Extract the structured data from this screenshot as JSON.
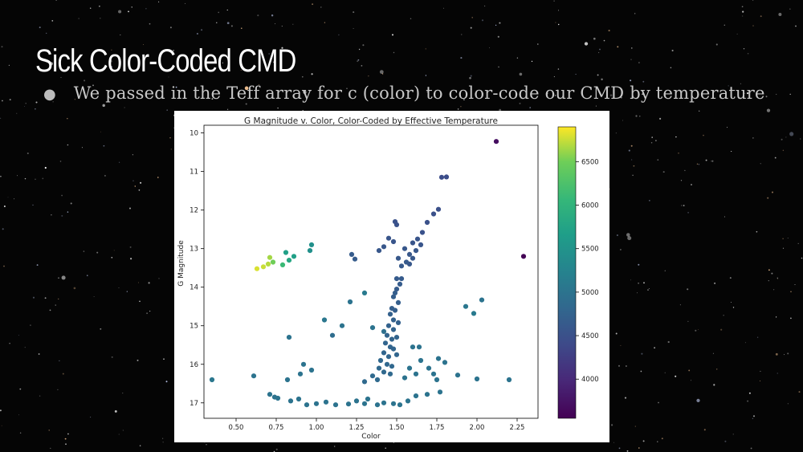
{
  "slide": {
    "title": "Sick Color-Coded CMD",
    "bullet": "We passed in the Teff array for c (color) to color-code our CMD by temperature"
  },
  "chart_data": {
    "type": "scatter",
    "title": "G Magnitude v. Color, Color-Coded by Effective Temperature",
    "xlabel": "Color",
    "ylabel": "G Magnitude",
    "xlim": [
      0.3,
      2.38
    ],
    "ylim": [
      17.4,
      9.8
    ],
    "y_inverted": true,
    "xticks": [
      "0.50",
      "0.75",
      "1.00",
      "1.25",
      "1.50",
      "1.75",
      "2.00",
      "2.25"
    ],
    "yticks": [
      "10",
      "11",
      "12",
      "13",
      "14",
      "15",
      "16",
      "17"
    ],
    "colorbar": {
      "label": "",
      "range": [
        3550,
        6900
      ],
      "ticks": [
        "4000",
        "4500",
        "5000",
        "5500",
        "6000",
        "6500"
      ],
      "colormap": "viridis"
    },
    "grid": false,
    "points": [
      [
        2.12,
        10.22,
        3700
      ],
      [
        2.29,
        13.2,
        3560
      ],
      [
        1.78,
        11.15,
        4450
      ],
      [
        1.81,
        11.14,
        4450
      ],
      [
        1.76,
        11.98,
        4480
      ],
      [
        1.73,
        12.1,
        4500
      ],
      [
        1.69,
        12.32,
        4500
      ],
      [
        1.66,
        12.58,
        4520
      ],
      [
        1.49,
        12.3,
        4520
      ],
      [
        1.5,
        12.38,
        4520
      ],
      [
        1.63,
        12.75,
        4550
      ],
      [
        1.45,
        12.73,
        4550
      ],
      [
        1.48,
        12.82,
        4560
      ],
      [
        1.6,
        12.85,
        4560
      ],
      [
        1.65,
        12.9,
        4560
      ],
      [
        1.42,
        12.95,
        4580
      ],
      [
        1.55,
        13.0,
        4580
      ],
      [
        1.62,
        13.05,
        4580
      ],
      [
        1.39,
        13.05,
        4580
      ],
      [
        1.58,
        13.15,
        4600
      ],
      [
        1.6,
        13.25,
        4600
      ],
      [
        1.51,
        13.25,
        4600
      ],
      [
        1.58,
        13.4,
        4600
      ],
      [
        1.22,
        13.15,
        4650
      ],
      [
        1.24,
        13.27,
        4650
      ],
      [
        1.56,
        13.35,
        4620
      ],
      [
        1.53,
        13.45,
        4620
      ],
      [
        1.53,
        13.78,
        4640
      ],
      [
        1.5,
        13.78,
        4640
      ],
      [
        1.52,
        13.92,
        4660
      ],
      [
        1.5,
        14.05,
        4660
      ],
      [
        1.49,
        14.15,
        4680
      ],
      [
        1.48,
        14.25,
        4680
      ],
      [
        1.51,
        14.4,
        4700
      ],
      [
        1.47,
        14.55,
        4700
      ],
      [
        1.49,
        14.6,
        4700
      ],
      [
        1.46,
        14.7,
        4720
      ],
      [
        1.48,
        14.85,
        4720
      ],
      [
        1.51,
        14.92,
        4720
      ],
      [
        1.45,
        15.0,
        4740
      ],
      [
        1.48,
        15.1,
        4740
      ],
      [
        1.44,
        15.25,
        4760
      ],
      [
        1.47,
        15.35,
        4760
      ],
      [
        1.5,
        15.3,
        4760
      ],
      [
        1.43,
        15.45,
        4780
      ],
      [
        1.46,
        15.55,
        4780
      ],
      [
        1.48,
        15.6,
        4780
      ],
      [
        1.42,
        15.7,
        4800
      ],
      [
        1.45,
        15.8,
        4800
      ],
      [
        1.5,
        15.75,
        4800
      ],
      [
        1.4,
        15.9,
        4820
      ],
      [
        1.44,
        16.0,
        4820
      ],
      [
        1.47,
        16.05,
        4820
      ],
      [
        1.39,
        16.1,
        4840
      ],
      [
        1.42,
        16.2,
        4840
      ],
      [
        1.46,
        16.25,
        4840
      ],
      [
        1.35,
        16.3,
        4860
      ],
      [
        1.38,
        16.4,
        4860
      ],
      [
        1.3,
        16.45,
        4860
      ],
      [
        0.63,
        13.52,
        6800
      ],
      [
        0.67,
        13.47,
        6750
      ],
      [
        0.7,
        13.4,
        6700
      ],
      [
        0.71,
        13.23,
        6650
      ],
      [
        0.73,
        13.35,
        6500
      ],
      [
        0.79,
        13.42,
        6100
      ],
      [
        0.83,
        13.3,
        5800
      ],
      [
        0.86,
        13.2,
        5700
      ],
      [
        0.81,
        13.1,
        5700
      ],
      [
        0.97,
        12.9,
        5450
      ],
      [
        0.96,
        13.05,
        5450
      ],
      [
        1.3,
        14.15,
        5100
      ],
      [
        1.21,
        14.38,
        5000
      ],
      [
        1.98,
        14.68,
        5100
      ],
      [
        2.03,
        14.33,
        5000
      ],
      [
        1.93,
        14.5,
        5050
      ],
      [
        1.05,
        14.85,
        5050
      ],
      [
        1.16,
        15.0,
        5000
      ],
      [
        1.1,
        15.25,
        4900
      ],
      [
        0.83,
        15.3,
        5000
      ],
      [
        1.35,
        15.05,
        5000
      ],
      [
        1.42,
        15.15,
        4950
      ],
      [
        1.6,
        15.55,
        5000
      ],
      [
        1.64,
        15.55,
        5000
      ],
      [
        1.65,
        15.9,
        5000
      ],
      [
        1.76,
        15.85,
        5000
      ],
      [
        1.8,
        15.95,
        5000
      ],
      [
        1.73,
        16.25,
        5000
      ],
      [
        1.75,
        16.4,
        5000
      ],
      [
        1.88,
        16.28,
        5000
      ],
      [
        2.0,
        16.38,
        5000
      ],
      [
        2.2,
        16.4,
        5000
      ],
      [
        0.35,
        16.4,
        5050
      ],
      [
        0.61,
        16.3,
        5000
      ],
      [
        0.82,
        16.4,
        5000
      ],
      [
        0.9,
        16.25,
        5000
      ],
      [
        0.92,
        16.0,
        5000
      ],
      [
        0.97,
        16.15,
        5000
      ],
      [
        0.71,
        16.78,
        5000
      ],
      [
        0.74,
        16.85,
        5000
      ],
      [
        0.76,
        16.88,
        5000
      ],
      [
        0.84,
        16.95,
        5000
      ],
      [
        0.89,
        16.9,
        5000
      ],
      [
        1.55,
        16.35,
        5000
      ],
      [
        1.62,
        16.25,
        5000
      ],
      [
        1.58,
        16.1,
        5000
      ],
      [
        1.7,
        16.1,
        5000
      ],
      [
        1.69,
        16.78,
        5000
      ],
      [
        1.62,
        16.82,
        5000
      ],
      [
        1.77,
        16.72,
        5000
      ],
      [
        1.57,
        16.95,
        5000
      ],
      [
        1.52,
        17.05,
        5000
      ],
      [
        1.48,
        17.02,
        5000
      ],
      [
        1.42,
        17.0,
        5000
      ],
      [
        1.38,
        17.05,
        5000
      ],
      [
        1.3,
        17.02,
        5000
      ],
      [
        1.2,
        17.03,
        5000
      ],
      [
        1.12,
        17.05,
        5000
      ],
      [
        1.0,
        17.02,
        5000
      ],
      [
        0.94,
        17.05,
        5000
      ],
      [
        1.06,
        16.98,
        5000
      ],
      [
        1.25,
        16.95,
        5000
      ],
      [
        1.32,
        16.9,
        5000
      ]
    ]
  }
}
